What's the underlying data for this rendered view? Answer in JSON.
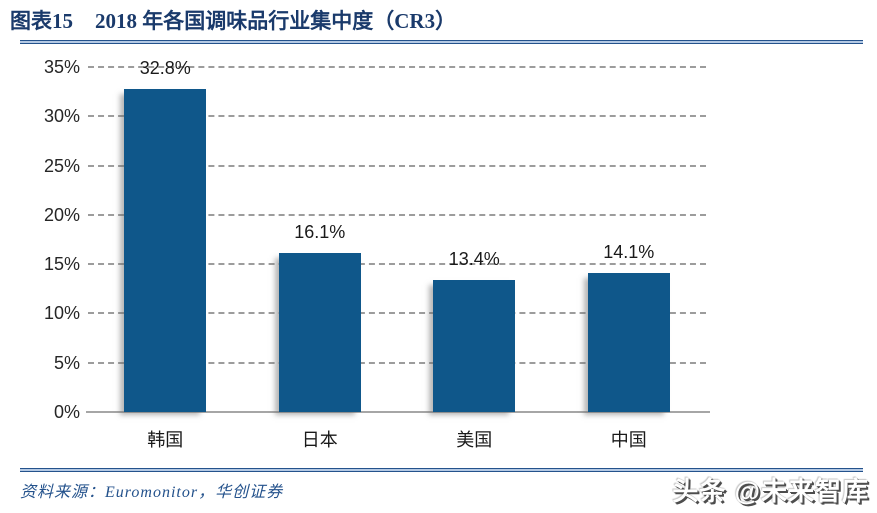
{
  "header": {
    "figure_label": "图表15",
    "title": "2018 年各国调味品行业集中度（CR3）"
  },
  "chart_data": {
    "type": "bar",
    "title": "2018 年各国调味品行业集中度（CR3）",
    "categories": [
      "韩国",
      "日本",
      "美国",
      "中国"
    ],
    "values": [
      32.8,
      16.1,
      13.4,
      14.1
    ],
    "value_labels": [
      "32.8%",
      "16.1%",
      "13.4%",
      "14.1%"
    ],
    "xlabel": "",
    "ylabel": "",
    "ylim": [
      0,
      35
    ],
    "ytick_values": [
      0,
      5,
      10,
      15,
      20,
      25,
      30,
      35
    ],
    "ytick_labels": [
      "0%",
      "5%",
      "10%",
      "15%",
      "20%",
      "25%",
      "30%",
      "35%"
    ],
    "grid": "horizontal-dashed",
    "legend": "none",
    "bar_color": "#0f578a"
  },
  "footer": {
    "source": "资料来源：Euromonitor，华创证券",
    "watermark": "头条 @未来智库"
  },
  "colors": {
    "bar": "#0f578a",
    "title_text": "#1a3a6b",
    "rule": "#24528c",
    "gridline": "#9c9c9c",
    "axis_line": "#a6a6a6",
    "source_text": "#24528c"
  }
}
